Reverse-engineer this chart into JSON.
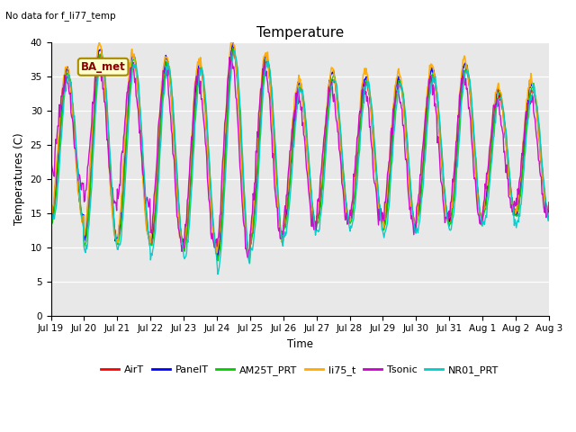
{
  "title": "Temperature",
  "xlabel": "Time",
  "ylabel": "Temperatures (C)",
  "top_left_text": "No data for f_li77_temp",
  "legend_label_text": "BA_met",
  "ylim": [
    0,
    40
  ],
  "yticks": [
    0,
    5,
    10,
    15,
    20,
    25,
    30,
    35,
    40
  ],
  "plot_bg_color": "#e8e8e8",
  "fig_bg_color": "#ffffff",
  "series": [
    {
      "name": "AirT",
      "color": "#ff0000",
      "lw": 1.0
    },
    {
      "name": "PanelT",
      "color": "#0000ff",
      "lw": 1.0
    },
    {
      "name": "AM25T_PRT",
      "color": "#00cc00",
      "lw": 1.0
    },
    {
      "name": "li75_t",
      "color": "#ffaa00",
      "lw": 1.2
    },
    {
      "name": "Tsonic",
      "color": "#cc00cc",
      "lw": 1.0
    },
    {
      "name": "NR01_PRT",
      "color": "#00cccc",
      "lw": 1.0
    }
  ],
  "tick_labels": [
    "Jul 19",
    "Jul 20",
    "Jul 21",
    "Jul 22",
    "Jul 23",
    "Jul 24",
    "Jul 25",
    "Jul 26",
    "Jul 27",
    "Jul 28",
    "Jul 29",
    "Jul 30",
    "Jul 31",
    "Aug 1",
    "Aug 2",
    "Aug 3"
  ],
  "figsize": [
    6.4,
    4.8
  ],
  "dpi": 100
}
